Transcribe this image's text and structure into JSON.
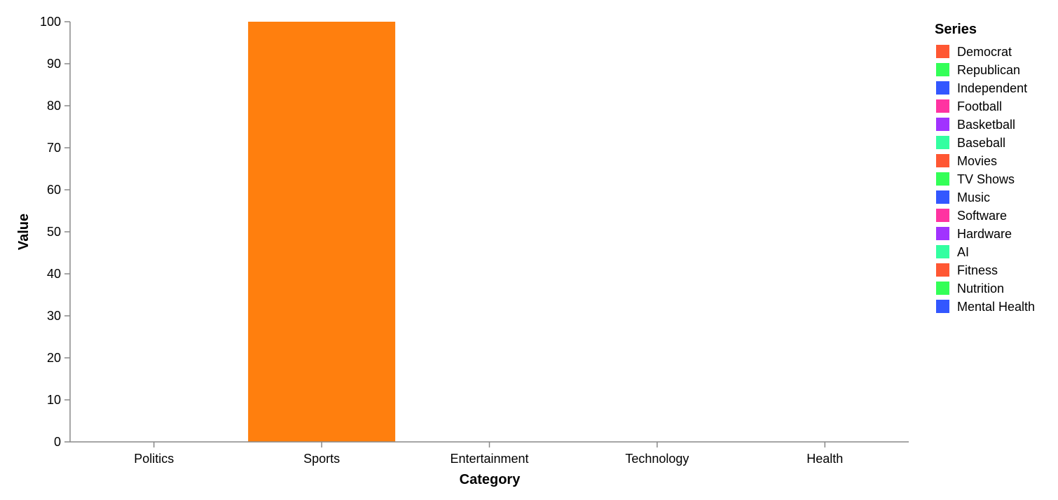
{
  "chart_data": {
    "type": "bar",
    "categories": [
      "Politics",
      "Sports",
      "Entertainment",
      "Technology",
      "Health"
    ],
    "series": [
      {
        "name": "Democrat",
        "color": "#ff5733",
        "values": [
          0,
          null,
          null,
          null,
          null
        ]
      },
      {
        "name": "Republican",
        "color": "#33ff57",
        "values": [
          0,
          null,
          null,
          null,
          null
        ]
      },
      {
        "name": "Independent",
        "color": "#3357ff",
        "values": [
          0,
          null,
          null,
          null,
          null
        ]
      },
      {
        "name": "Football",
        "color": "#ff33a1",
        "values": [
          null,
          100,
          null,
          null,
          null
        ]
      },
      {
        "name": "Basketball",
        "color": "#a133ff",
        "values": [
          null,
          0,
          null,
          null,
          null
        ]
      },
      {
        "name": "Baseball",
        "color": "#33ffa1",
        "values": [
          null,
          0,
          null,
          null,
          null
        ]
      },
      {
        "name": "Movies",
        "color": "#ff5733",
        "values": [
          null,
          null,
          0,
          null,
          null
        ]
      },
      {
        "name": "TV Shows",
        "color": "#33ff57",
        "values": [
          null,
          null,
          0,
          null,
          null
        ]
      },
      {
        "name": "Music",
        "color": "#3357ff",
        "values": [
          null,
          null,
          0,
          null,
          null
        ]
      },
      {
        "name": "Software",
        "color": "#ff33a1",
        "values": [
          null,
          null,
          null,
          0,
          null
        ]
      },
      {
        "name": "Hardware",
        "color": "#a133ff",
        "values": [
          null,
          null,
          null,
          0,
          null
        ]
      },
      {
        "name": "AI",
        "color": "#33ffa1",
        "values": [
          null,
          null,
          null,
          0,
          null
        ]
      },
      {
        "name": "Fitness",
        "color": "#ff5733",
        "values": [
          null,
          null,
          null,
          null,
          0
        ]
      },
      {
        "name": "Nutrition",
        "color": "#33ff57",
        "values": [
          null,
          null,
          null,
          null,
          0
        ]
      },
      {
        "name": "Mental Health",
        "color": "#3357ff",
        "values": [
          null,
          null,
          null,
          null,
          0
        ]
      }
    ],
    "bar_color": "#ff7f0e",
    "xlabel": "Category",
    "ylabel": "Value",
    "ylim": [
      0,
      100
    ],
    "yticks": [
      0,
      10,
      20,
      30,
      40,
      50,
      60,
      70,
      80,
      90,
      100
    ],
    "grid": false,
    "legend": {
      "title": "Series",
      "placement": "right"
    }
  }
}
